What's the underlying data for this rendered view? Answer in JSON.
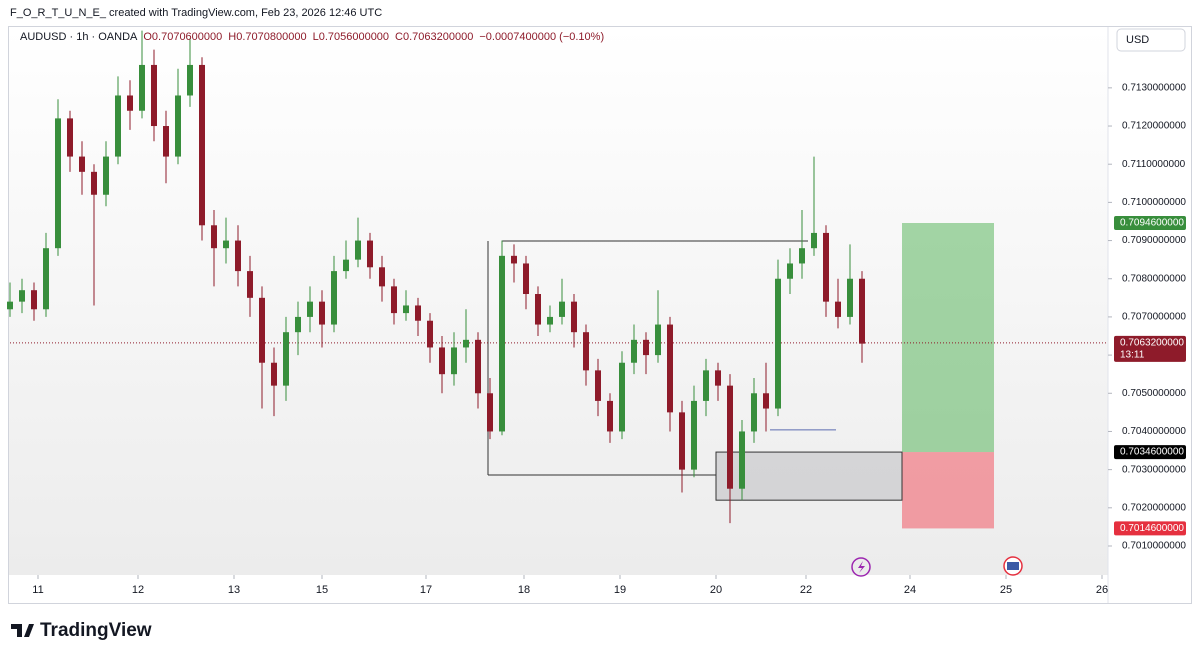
{
  "header": {
    "credit": "F_O_R_T_U_N_E_ created with TradingView.com, Feb 23, 2026 12:46 UTC"
  },
  "chart_data": {
    "type": "candlestick",
    "legend": {
      "symbol": "AUDUSD · 1h · OANDA",
      "items": [
        "O0.7070600000",
        "H0.7070800000",
        "L0.7056000000",
        "C0.7063200000",
        "−0.0007400000 (−0.10%)"
      ]
    },
    "currency": "USD",
    "up_color": "#388e3c",
    "down_color": "#8e1b2a",
    "x": [
      0,
      3,
      6,
      9,
      12,
      15,
      18,
      21,
      24,
      27,
      30,
      33,
      36,
      39,
      42,
      45,
      48,
      51,
      54,
      57,
      60,
      63,
      66,
      69,
      72,
      75,
      78,
      81,
      84,
      87,
      90,
      93,
      96,
      99,
      102,
      105,
      108,
      111,
      114,
      117,
      120,
      123,
      126,
      129,
      132,
      135,
      138,
      141,
      144,
      147,
      150,
      153,
      156,
      159,
      162,
      165,
      168,
      171,
      174,
      177,
      180,
      183,
      186,
      189,
      192,
      195,
      198,
      201,
      204,
      207,
      210,
      213
    ],
    "open": [
      0.7072,
      0.7074,
      0.7077,
      0.7072,
      0.7088,
      0.7122,
      0.7112,
      0.7108,
      0.7102,
      0.7112,
      0.7128,
      0.7124,
      0.7136,
      0.712,
      0.7112,
      0.7128,
      0.7136,
      0.7094,
      0.7088,
      0.709,
      0.7082,
      0.7075,
      0.7058,
      0.7052,
      0.7066,
      0.707,
      0.7074,
      0.7068,
      0.7082,
      0.7085,
      0.709,
      0.7083,
      0.7078,
      0.7071,
      0.7073,
      0.7069,
      0.7062,
      0.7055,
      0.7062,
      0.7064,
      0.705,
      0.704,
      0.7086,
      0.7084,
      0.7076,
      0.7068,
      0.707,
      0.7074,
      0.7066,
      0.7056,
      0.7048,
      0.704,
      0.7058,
      0.7064,
      0.706,
      0.7068,
      0.7045,
      0.703,
      0.7048,
      0.7056,
      0.7052,
      0.7025,
      0.704,
      0.705,
      0.7046,
      0.708,
      0.7084,
      0.7088,
      0.7092,
      0.7074,
      0.707,
      0.708
    ],
    "high": [
      0.7079,
      0.708,
      0.7079,
      0.7092,
      0.7127,
      0.7124,
      0.7116,
      0.711,
      0.7116,
      0.7133,
      0.7132,
      0.7145,
      0.714,
      0.7124,
      0.7135,
      0.7143,
      0.7138,
      0.7098,
      0.7096,
      0.7094,
      0.7086,
      0.7078,
      0.7062,
      0.707,
      0.7074,
      0.7078,
      0.7077,
      0.7086,
      0.709,
      0.7096,
      0.7092,
      0.7086,
      0.708,
      0.7077,
      0.7075,
      0.7071,
      0.7065,
      0.7066,
      0.7072,
      0.7066,
      0.7054,
      0.709,
      0.7089,
      0.7086,
      0.7078,
      0.7073,
      0.708,
      0.7076,
      0.7068,
      0.7059,
      0.705,
      0.7061,
      0.7068,
      0.7066,
      0.7077,
      0.707,
      0.7048,
      0.7052,
      0.7059,
      0.7058,
      0.7055,
      0.7043,
      0.7054,
      0.7058,
      0.7085,
      0.7088,
      0.7098,
      0.7112,
      0.7094,
      0.708,
      0.7089,
      0.7082
    ],
    "low": [
      0.707,
      0.7071,
      0.7069,
      0.707,
      0.7086,
      0.7108,
      0.7102,
      0.7073,
      0.7099,
      0.711,
      0.7119,
      0.7122,
      0.7116,
      0.7105,
      0.711,
      0.7125,
      0.709,
      0.7078,
      0.7084,
      0.7078,
      0.707,
      0.7046,
      0.7044,
      0.7048,
      0.706,
      0.7066,
      0.7062,
      0.7066,
      0.708,
      0.7083,
      0.708,
      0.7074,
      0.7068,
      0.7069,
      0.7065,
      0.7058,
      0.705,
      0.7052,
      0.7058,
      0.7046,
      0.7038,
      0.7039,
      0.7079,
      0.7072,
      0.7065,
      0.7066,
      0.7068,
      0.7062,
      0.7052,
      0.7044,
      0.7037,
      0.7038,
      0.7055,
      0.7055,
      0.7058,
      0.704,
      0.7024,
      0.7028,
      0.7044,
      0.7048,
      0.7016,
      0.7022,
      0.7037,
      0.704,
      0.7044,
      0.7076,
      0.708,
      0.7086,
      0.707,
      0.7067,
      0.7068,
      0.7058
    ],
    "close": [
      0.7074,
      0.7077,
      0.7072,
      0.7088,
      0.7122,
      0.7112,
      0.7108,
      0.7102,
      0.7112,
      0.7128,
      0.7124,
      0.7136,
      0.712,
      0.7112,
      0.7128,
      0.7136,
      0.7094,
      0.7088,
      0.709,
      0.7082,
      0.7075,
      0.7058,
      0.7052,
      0.7066,
      0.707,
      0.7074,
      0.7068,
      0.7082,
      0.7085,
      0.709,
      0.7083,
      0.7078,
      0.7071,
      0.7073,
      0.7069,
      0.7062,
      0.7055,
      0.7062,
      0.7064,
      0.705,
      0.704,
      0.7086,
      0.7084,
      0.7076,
      0.7068,
      0.707,
      0.7074,
      0.7066,
      0.7056,
      0.7048,
      0.704,
      0.7058,
      0.7064,
      0.706,
      0.7068,
      0.7045,
      0.703,
      0.7048,
      0.7056,
      0.7052,
      0.7025,
      0.704,
      0.705,
      0.7046,
      0.708,
      0.7084,
      0.7088,
      0.7092,
      0.7074,
      0.707,
      0.708,
      0.7063
    ],
    "xlim": [
      0,
      274.5
    ],
    "xticks": [
      {
        "value": 7,
        "label": "11"
      },
      {
        "value": 32,
        "label": "12"
      },
      {
        "value": 56,
        "label": "13"
      },
      {
        "value": 78,
        "label": "15"
      },
      {
        "value": 104,
        "label": "17"
      },
      {
        "value": 128.5,
        "label": "18"
      },
      {
        "value": 152.5,
        "label": "19"
      },
      {
        "value": 176.5,
        "label": "20"
      },
      {
        "value": 199,
        "label": "22"
      },
      {
        "value": 225,
        "label": "24"
      },
      {
        "value": 249,
        "label": "25"
      },
      {
        "value": 273,
        "label": "26"
      }
    ],
    "ylim": [
      0.70024,
      0.71462
    ],
    "yticks": [
      {
        "value": 0.701,
        "label": "0.7010000000"
      },
      {
        "value": 0.702,
        "label": "0.7020000000"
      },
      {
        "value": 0.703,
        "label": "0.7030000000"
      },
      {
        "value": 0.704,
        "label": "0.7040000000"
      },
      {
        "value": 0.705,
        "label": "0.7050000000"
      },
      {
        "value": 0.706,
        "label": "0.7060000000"
      },
      {
        "value": 0.707,
        "label": "0.7070000000"
      },
      {
        "value": 0.708,
        "label": "0.7080000000"
      },
      {
        "value": 0.709,
        "label": "0.7090000000"
      },
      {
        "value": 0.71,
        "label": "0.7100000000"
      },
      {
        "value": 0.711,
        "label": "0.7110000000"
      },
      {
        "value": 0.712,
        "label": "0.7120000000"
      },
      {
        "value": 0.713,
        "label": "0.7130000000"
      }
    ],
    "price_labels": [
      {
        "value": 0.70946,
        "label": "0.7094600000",
        "color": "#388e3c"
      },
      {
        "value": 0.70632,
        "label": "0.7063200000",
        "color": "#8e1b2a",
        "timer": "13:11"
      },
      {
        "value": 0.70346,
        "label": "0.7034600000",
        "color": "#000000"
      },
      {
        "value": 0.70146,
        "label": "0.7014600000",
        "color": "#e5303f"
      }
    ],
    "position": {
      "x": [
        223,
        246
      ],
      "entry": 0.70346,
      "target": 0.70946,
      "stop": 0.70146
    },
    "zone": {
      "x": [
        176.5,
        223
      ],
      "y": [
        0.7022,
        0.70346
      ]
    },
    "lines": [
      {
        "x": [
          123,
          199.5
        ],
        "y": 0.70899
      },
      {
        "x": [
          119.5,
          176.5
        ],
        "y": 0.70286
      },
      {
        "x": [
          190,
          206.5
        ],
        "y": 0.70404
      }
    ]
  },
  "footer": {
    "brand": "TradingView"
  }
}
